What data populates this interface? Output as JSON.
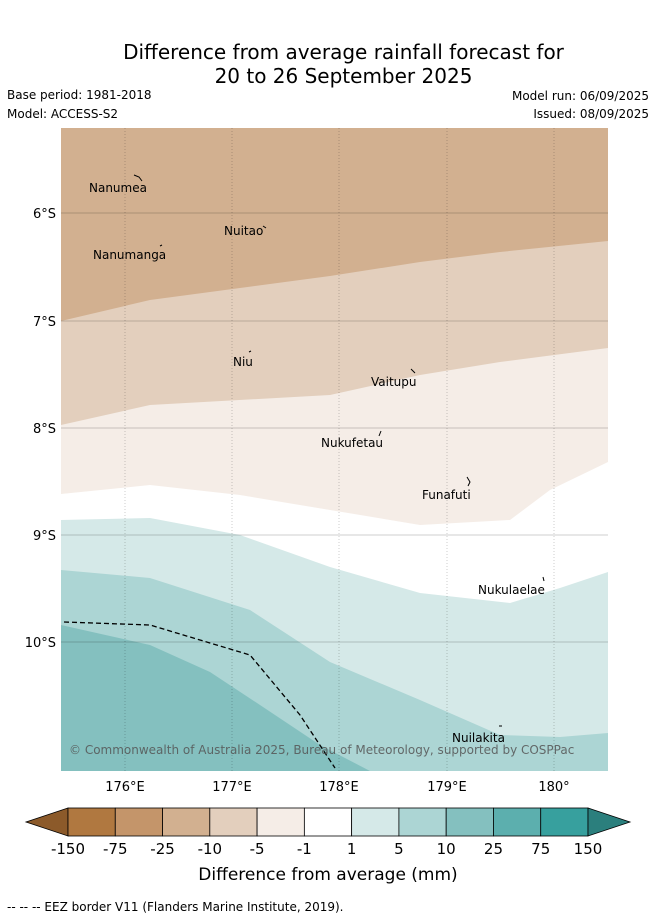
{
  "title_line1": "Difference from average rainfall forecast for",
  "title_line2": "20 to 26 September 2025",
  "base_period": "Base period: 1981-2018",
  "model": "Model: ACCESS-S2",
  "model_run": "Model run: 06/09/2025",
  "issued": "Issued: 08/09/2025",
  "lat_labels": [
    "6°S",
    "7°S",
    "8°S",
    "9°S",
    "10°S"
  ],
  "lon_labels": [
    "176°E",
    "177°E",
    "178°E",
    "179°E",
    "180°"
  ],
  "islands": [
    "Nanumea",
    "Nuitao",
    "Nanumanga",
    "Niu",
    "Vaitupu",
    "Nukufetau",
    "Funafuti",
    "Nukulaelae",
    "Nuilakita"
  ],
  "copyright": "© Commonwealth of Australia 2025, Bureau of Meteorology, supported by COSPPac",
  "colorbar": {
    "ticks": [
      "-150",
      "-75",
      "-25",
      "-10",
      "-5",
      "-1",
      "1",
      "5",
      "10",
      "25",
      "75",
      "150"
    ],
    "colors": [
      "#8c5a2a",
      "#b07840",
      "#c4956a",
      "#d2b090",
      "#e3cfbd",
      "#f5ede7",
      "#ffffff",
      "#d5e9e8",
      "#acd5d4",
      "#84c0bf",
      "#5cafae",
      "#37a09e",
      "#2b7f7d"
    ],
    "label": "Difference from average (mm)"
  },
  "eez_note": "-- -- -- EEZ border V11 (Flanders Marine Institute, 2019)."
}
